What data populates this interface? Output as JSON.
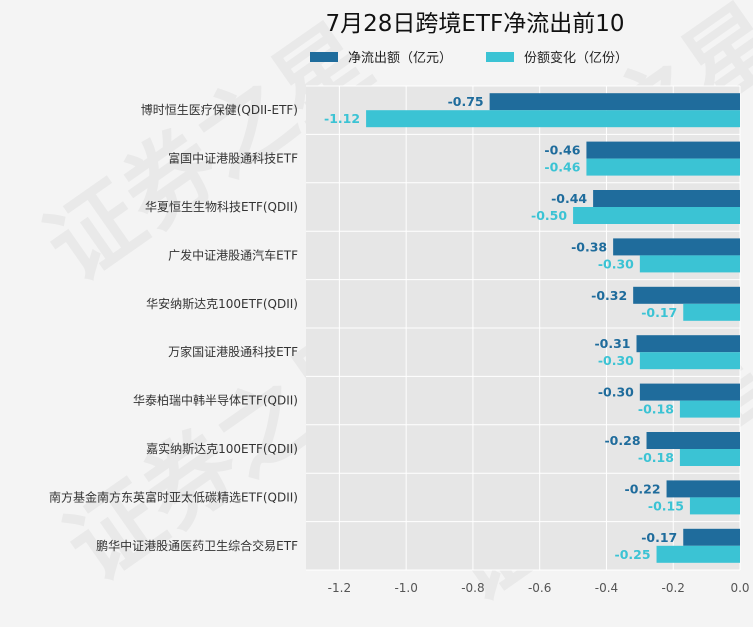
{
  "watermark": "证券之星",
  "chart_data": {
    "type": "bar",
    "orientation": "horizontal",
    "title": "7月28日跨境ETF净流出前10",
    "categories": [
      "博时恒生医疗保健(QDII-ETF)",
      "富国中证港股通科技ETF",
      "华夏恒生生物科技ETF(QDII)",
      "广发中证港股通汽车ETF",
      "华安纳斯达克100ETF(QDII)",
      "万家国证港股通科技ETF",
      "华泰柏瑞中韩半导体ETF(QDII)",
      "嘉实纳斯达克100ETF(QDII)",
      "南方基金南方东英富时亚太低碳精选ETF(QDII)",
      "鹏华中证港股通医药卫生综合交易ETF"
    ],
    "series": [
      {
        "name": "净流出额（亿元）",
        "color": "#1f6c9c",
        "values": [
          -0.75,
          -0.46,
          -0.44,
          -0.38,
          -0.32,
          -0.31,
          -0.3,
          -0.28,
          -0.22,
          -0.17
        ],
        "labels": [
          "-0.75",
          "-0.46",
          "-0.44",
          "-0.38",
          "-0.32",
          "-0.31",
          "-0.30",
          "-0.28",
          "-0.22",
          "-0.17"
        ]
      },
      {
        "name": "份额变化（亿份）",
        "color": "#3bc3d4",
        "values": [
          -1.12,
          -0.46,
          -0.5,
          -0.3,
          -0.17,
          -0.3,
          -0.18,
          -0.18,
          -0.15,
          -0.25
        ],
        "labels": [
          "-1.12",
          "-0.46",
          "-0.50",
          "-0.30",
          "-0.17",
          "-0.30",
          "-0.18",
          "-0.18",
          "-0.15",
          "-0.25"
        ]
      }
    ],
    "xlim": [
      -1.3,
      0.0
    ],
    "xticks": [
      -1.2,
      -1.0,
      -0.8,
      -0.6,
      -0.4,
      -0.2,
      0.0
    ],
    "xtick_labels": [
      "-1.2",
      "-1.0",
      "-0.8",
      "-0.6",
      "-0.4",
      "-0.2",
      "0.0"
    ],
    "grid": true,
    "legend_position": "top"
  }
}
